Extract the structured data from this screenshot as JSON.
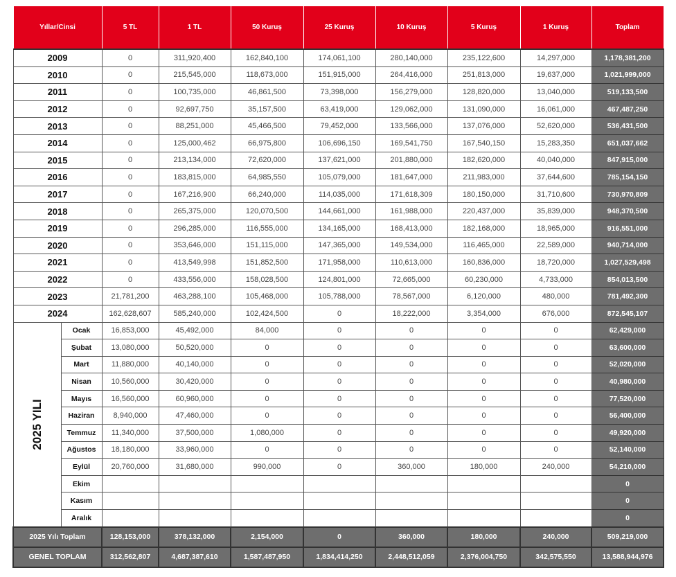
{
  "colors": {
    "header": "#e2001a",
    "total": "#6e6e6e"
  },
  "headers": [
    "Yıllar/Cinsi",
    "5 TL",
    "1 TL",
    "50 Kuruş",
    "25 Kuruş",
    "10 Kuruş",
    "5 Kuruş",
    "1 Kuruş",
    "Toplam"
  ],
  "years": [
    {
      "label": "2009",
      "values": [
        "0",
        "311,920,400",
        "162,840,100",
        "174,061,100",
        "280,140,000",
        "235,122,600",
        "14,297,000",
        "1,178,381,200"
      ]
    },
    {
      "label": "2010",
      "values": [
        "0",
        "215,545,000",
        "118,673,000",
        "151,915,000",
        "264,416,000",
        "251,813,000",
        "19,637,000",
        "1,021,999,000"
      ]
    },
    {
      "label": "2011",
      "values": [
        "0",
        "100,735,000",
        "46,861,500",
        "73,398,000",
        "156,279,000",
        "128,820,000",
        "13,040,000",
        "519,133,500"
      ]
    },
    {
      "label": "2012",
      "values": [
        "0",
        "92,697,750",
        "35,157,500",
        "63,419,000",
        "129,062,000",
        "131,090,000",
        "16,061,000",
        "467,487,250"
      ]
    },
    {
      "label": "2013",
      "values": [
        "0",
        "88,251,000",
        "45,466,500",
        "79,452,000",
        "133,566,000",
        "137,076,000",
        "52,620,000",
        "536,431,500"
      ]
    },
    {
      "label": "2014",
      "values": [
        "0",
        "125,000,462",
        "66,975,800",
        "106,696,150",
        "169,541,750",
        "167,540,150",
        "15,283,350",
        "651,037,662"
      ]
    },
    {
      "label": "2015",
      "values": [
        "0",
        "213,134,000",
        "72,620,000",
        "137,621,000",
        "201,880,000",
        "182,620,000",
        "40,040,000",
        "847,915,000"
      ]
    },
    {
      "label": "2016",
      "values": [
        "0",
        "183,815,000",
        "64,985,550",
        "105,079,000",
        "181,647,000",
        "211,983,000",
        "37,644,600",
        "785,154,150"
      ]
    },
    {
      "label": "2017",
      "values": [
        "0",
        "167,216,900",
        "66,240,000",
        "114,035,000",
        "171,618,309",
        "180,150,000",
        "31,710,600",
        "730,970,809"
      ]
    },
    {
      "label": "2018",
      "values": [
        "0",
        "265,375,000",
        "120,070,500",
        "144,661,000",
        "161,988,000",
        "220,437,000",
        "35,839,000",
        "948,370,500"
      ]
    },
    {
      "label": "2019",
      "values": [
        "0",
        "296,285,000",
        "116,555,000",
        "134,165,000",
        "168,413,000",
        "182,168,000",
        "18,965,000",
        "916,551,000"
      ]
    },
    {
      "label": "2020",
      "values": [
        "0",
        "353,646,000",
        "151,115,000",
        "147,365,000",
        "149,534,000",
        "116,465,000",
        "22,589,000",
        "940,714,000"
      ]
    },
    {
      "label": "2021",
      "values": [
        "0",
        "413,549,998",
        "151,852,500",
        "171,958,000",
        "110,613,000",
        "160,836,000",
        "18,720,000",
        "1,027,529,498"
      ]
    },
    {
      "label": "2022",
      "values": [
        "0",
        "433,556,000",
        "158,028,500",
        "124,801,000",
        "72,665,000",
        "60,230,000",
        "4,733,000",
        "854,013,500"
      ]
    },
    {
      "label": "2023",
      "values": [
        "21,781,200",
        "463,288,100",
        "105,468,000",
        "105,788,000",
        "78,567,000",
        "6,120,000",
        "480,000",
        "781,492,300"
      ]
    },
    {
      "label": "2024",
      "values": [
        "162,628,607",
        "585,240,000",
        "102,424,500",
        "0",
        "18,222,000",
        "3,354,000",
        "676,000",
        "872,545,107"
      ]
    }
  ],
  "year2025": {
    "label": "2025 YILI",
    "months": [
      {
        "label": "Ocak",
        "values": [
          "16,853,000",
          "45,492,000",
          "84,000",
          "0",
          "0",
          "0",
          "0",
          "62,429,000"
        ]
      },
      {
        "label": "Şubat",
        "values": [
          "13,080,000",
          "50,520,000",
          "0",
          "0",
          "0",
          "0",
          "0",
          "63,600,000"
        ]
      },
      {
        "label": "Mart",
        "values": [
          "11,880,000",
          "40,140,000",
          "0",
          "0",
          "0",
          "0",
          "0",
          "52,020,000"
        ]
      },
      {
        "label": "Nisan",
        "values": [
          "10,560,000",
          "30,420,000",
          "0",
          "0",
          "0",
          "0",
          "0",
          "40,980,000"
        ]
      },
      {
        "label": "Mayıs",
        "values": [
          "16,560,000",
          "60,960,000",
          "0",
          "0",
          "0",
          "0",
          "0",
          "77,520,000"
        ]
      },
      {
        "label": "Haziran",
        "values": [
          "8,940,000",
          "47,460,000",
          "0",
          "0",
          "0",
          "0",
          "0",
          "56,400,000"
        ]
      },
      {
        "label": "Temmuz",
        "values": [
          "11,340,000",
          "37,500,000",
          "1,080,000",
          "0",
          "0",
          "0",
          "0",
          "49,920,000"
        ]
      },
      {
        "label": "Ağustos",
        "values": [
          "18,180,000",
          "33,960,000",
          "0",
          "0",
          "0",
          "0",
          "0",
          "52,140,000"
        ]
      },
      {
        "label": "Eylül",
        "values": [
          "20,760,000",
          "31,680,000",
          "990,000",
          "0",
          "360,000",
          "180,000",
          "240,000",
          "54,210,000"
        ]
      },
      {
        "label": "Ekim",
        "values": [
          "",
          "",
          "",
          "",
          "",
          "",
          "",
          "0"
        ]
      },
      {
        "label": "Kasım",
        "values": [
          "",
          "",
          "",
          "",
          "",
          "",
          "",
          "0"
        ]
      },
      {
        "label": "Aralık",
        "values": [
          "",
          "",
          "",
          "",
          "",
          "",
          "",
          "0"
        ]
      }
    ]
  },
  "totals": [
    {
      "label": "2025 Yılı Toplam",
      "values": [
        "128,153,000",
        "378,132,000",
        "2,154,000",
        "0",
        "360,000",
        "180,000",
        "240,000",
        "509,219,000"
      ]
    },
    {
      "label": "GENEL TOPLAM",
      "values": [
        "312,562,807",
        "4,687,387,610",
        "1,587,487,950",
        "1,834,414,250",
        "2,448,512,059",
        "2,376,004,750",
        "342,575,550",
        "13,588,944,976"
      ]
    }
  ]
}
